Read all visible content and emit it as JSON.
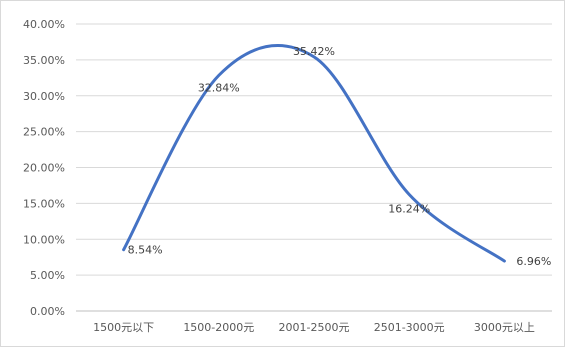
{
  "chart_data": {
    "type": "line",
    "categories": [
      "1500元以下",
      "1500-2000元",
      "2001-2500元",
      "2501-3000元",
      "3000元以上"
    ],
    "values": [
      8.54,
      32.84,
      35.42,
      16.24,
      6.96
    ],
    "data_labels": [
      "8.54%",
      "32.84%",
      "35.42%",
      "16.24%",
      "6.96%"
    ],
    "smooth": true,
    "ylim": [
      0,
      40
    ],
    "yticks": [
      "0.00%",
      "5.00%",
      "10.00%",
      "15.00%",
      "20.00%",
      "25.00%",
      "30.00%",
      "35.00%",
      "40.00%"
    ],
    "grid": true,
    "legend": "none",
    "colors": {
      "line": "#4472C4",
      "grid": "#d9d9d9",
      "axis": "#bfbfbf"
    }
  }
}
